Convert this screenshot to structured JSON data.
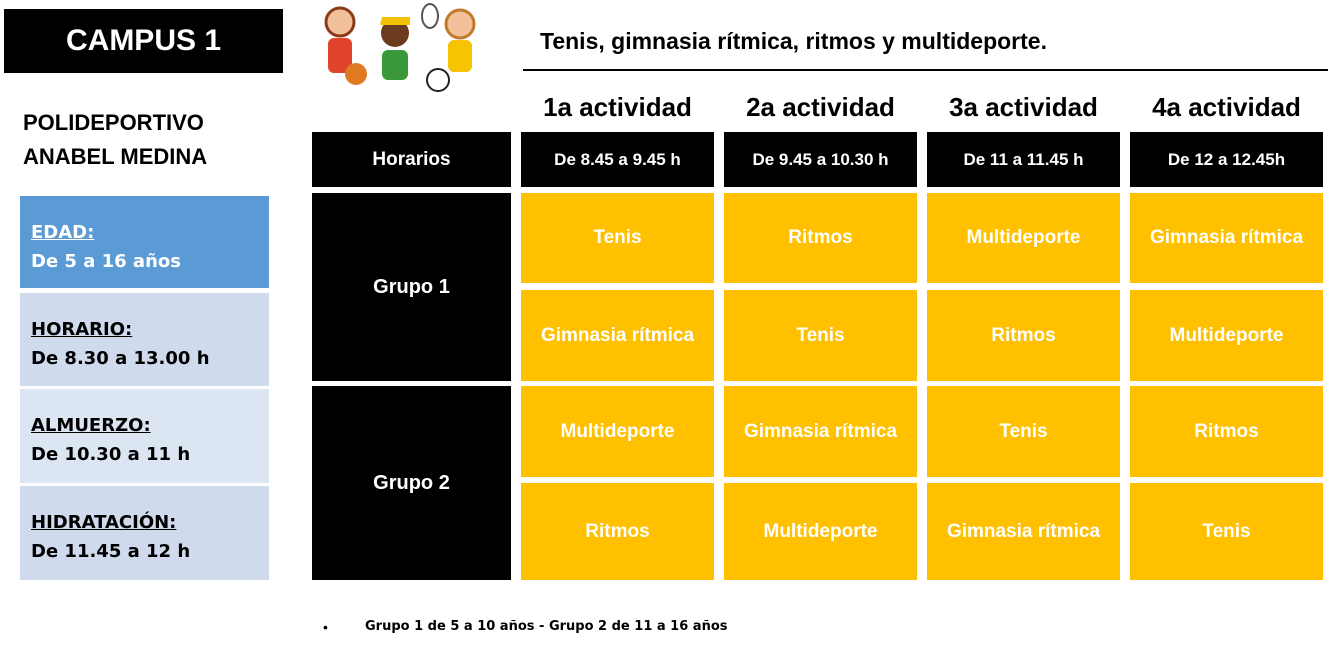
{
  "header": {
    "campus": "CAMPUS 1",
    "venue_line1": "POLIDEPORTIVO",
    "venue_line2": "ANABEL MEDINA",
    "subtitle": "Tenis, gimnasia rítmica, ritmos y multideporte."
  },
  "info": [
    {
      "label": "EDAD:",
      "value": "De 5 a 16 años"
    },
    {
      "label": "HORARIO:",
      "value": "De 8.30 a 13.00 h"
    },
    {
      "label": "ALMUERZO:",
      "value": "De 10.30 a 11 h"
    },
    {
      "label": "HIDRATACIÓN:",
      "value": "De 11.45 a 12 h"
    }
  ],
  "table": {
    "corner": "Horarios",
    "activities": [
      "1a actividad",
      "2a actividad",
      "3a actividad",
      "4a actividad"
    ],
    "times": [
      "De 8.45  a 9.45 h",
      "De 9.45  a 10.30 h",
      "De 11 a 11.45 h",
      "De 12 a 12.45h"
    ],
    "groups": [
      {
        "name": "Grupo 1",
        "rows": [
          [
            "Tenis",
            "Ritmos",
            "Multideporte",
            "Gimnasia rítmica"
          ],
          [
            "Gimnasia rítmica",
            "Tenis",
            "Ritmos",
            "Multideporte"
          ]
        ]
      },
      {
        "name": "Grupo 2",
        "rows": [
          [
            "Multideporte",
            "Gimnasia rítmica",
            "Tenis",
            "Ritmos"
          ],
          [
            "Ritmos",
            "Multideporte",
            "Gimnasia rítmica",
            "Tenis"
          ]
        ]
      }
    ]
  },
  "note": "Grupo 1 de 5 a 10 años - Grupo 2 de 11 a 16 años"
}
